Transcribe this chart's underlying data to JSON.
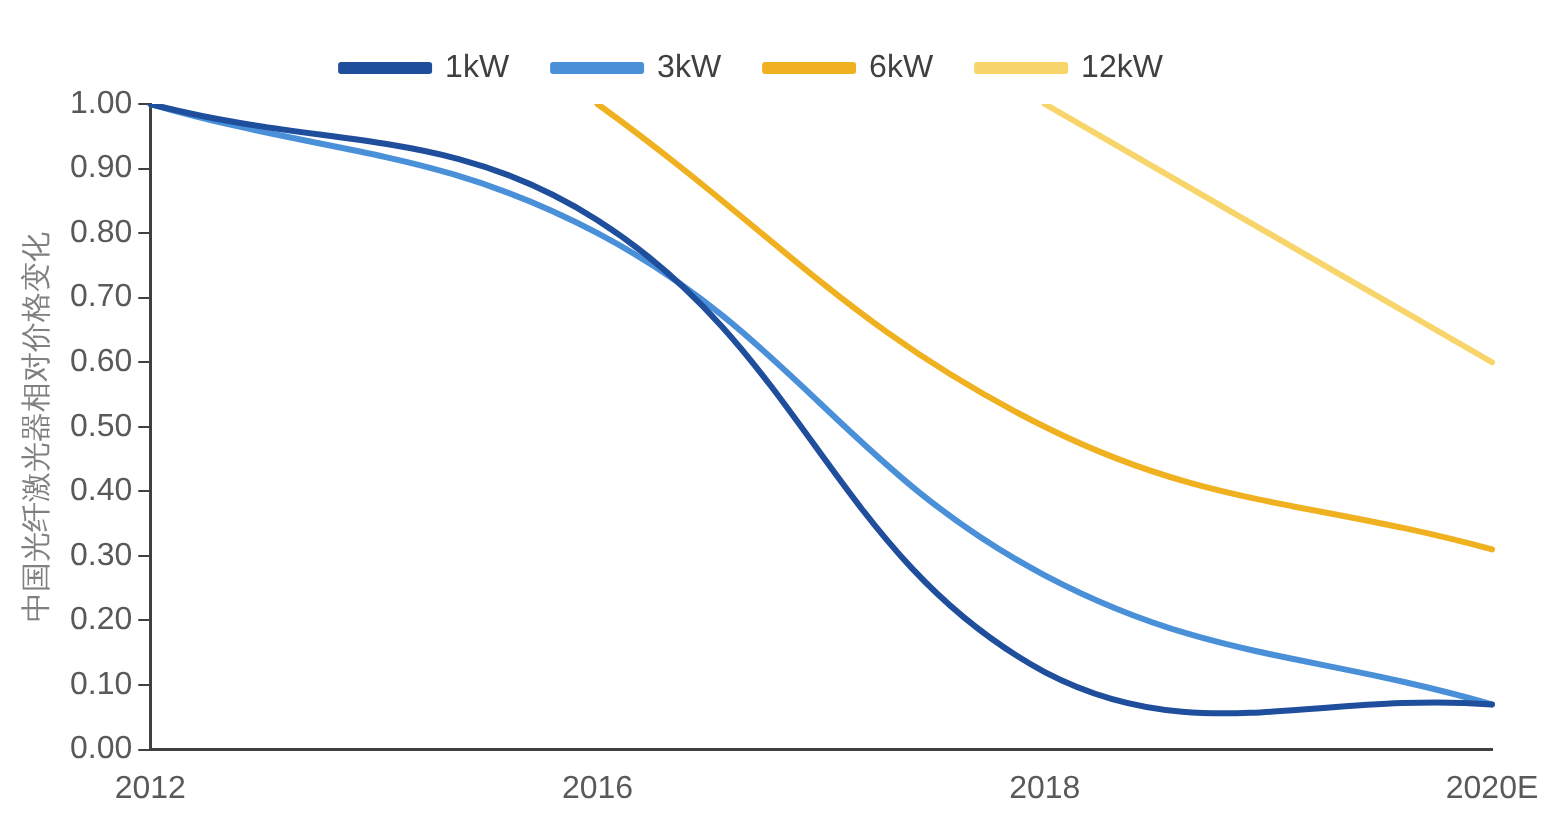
{
  "chart_data": {
    "type": "line",
    "ylabel": "中国光纤激光器相对价格变化",
    "categories": [
      "2012",
      "2016",
      "2018",
      "2020E"
    ],
    "series": [
      {
        "name": "1kW",
        "color": "#1f4e9c",
        "values": [
          1.0,
          0.82,
          0.12,
          0.07
        ]
      },
      {
        "name": "3kW",
        "color": "#4a90d9",
        "values": [
          1.0,
          0.8,
          0.27,
          0.07
        ]
      },
      {
        "name": "6kW",
        "color": "#f0b120",
        "values": [
          null,
          1.0,
          0.5,
          0.31
        ]
      },
      {
        "name": "12kW",
        "color": "#f7d56b",
        "values": [
          null,
          null,
          1.0,
          0.6
        ]
      }
    ],
    "ylim": [
      0,
      1
    ],
    "yticks": [
      {
        "value": 0,
        "label": "0.00"
      },
      {
        "value": 0.1,
        "label": "0.10"
      },
      {
        "value": 0.2,
        "label": "0.20"
      },
      {
        "value": 0.3,
        "label": "0.30"
      },
      {
        "value": 0.4,
        "label": "0.40"
      },
      {
        "value": 0.5,
        "label": "0.50"
      },
      {
        "value": 0.6,
        "label": "0.60"
      },
      {
        "value": 0.7,
        "label": "0.70"
      },
      {
        "value": 0.8,
        "label": "0.80"
      },
      {
        "value": 0.9,
        "label": "0.90"
      },
      {
        "value": 1,
        "label": "1.00"
      }
    ],
    "grid": false,
    "legend": "top",
    "marker": "none",
    "line_style": "solid"
  }
}
